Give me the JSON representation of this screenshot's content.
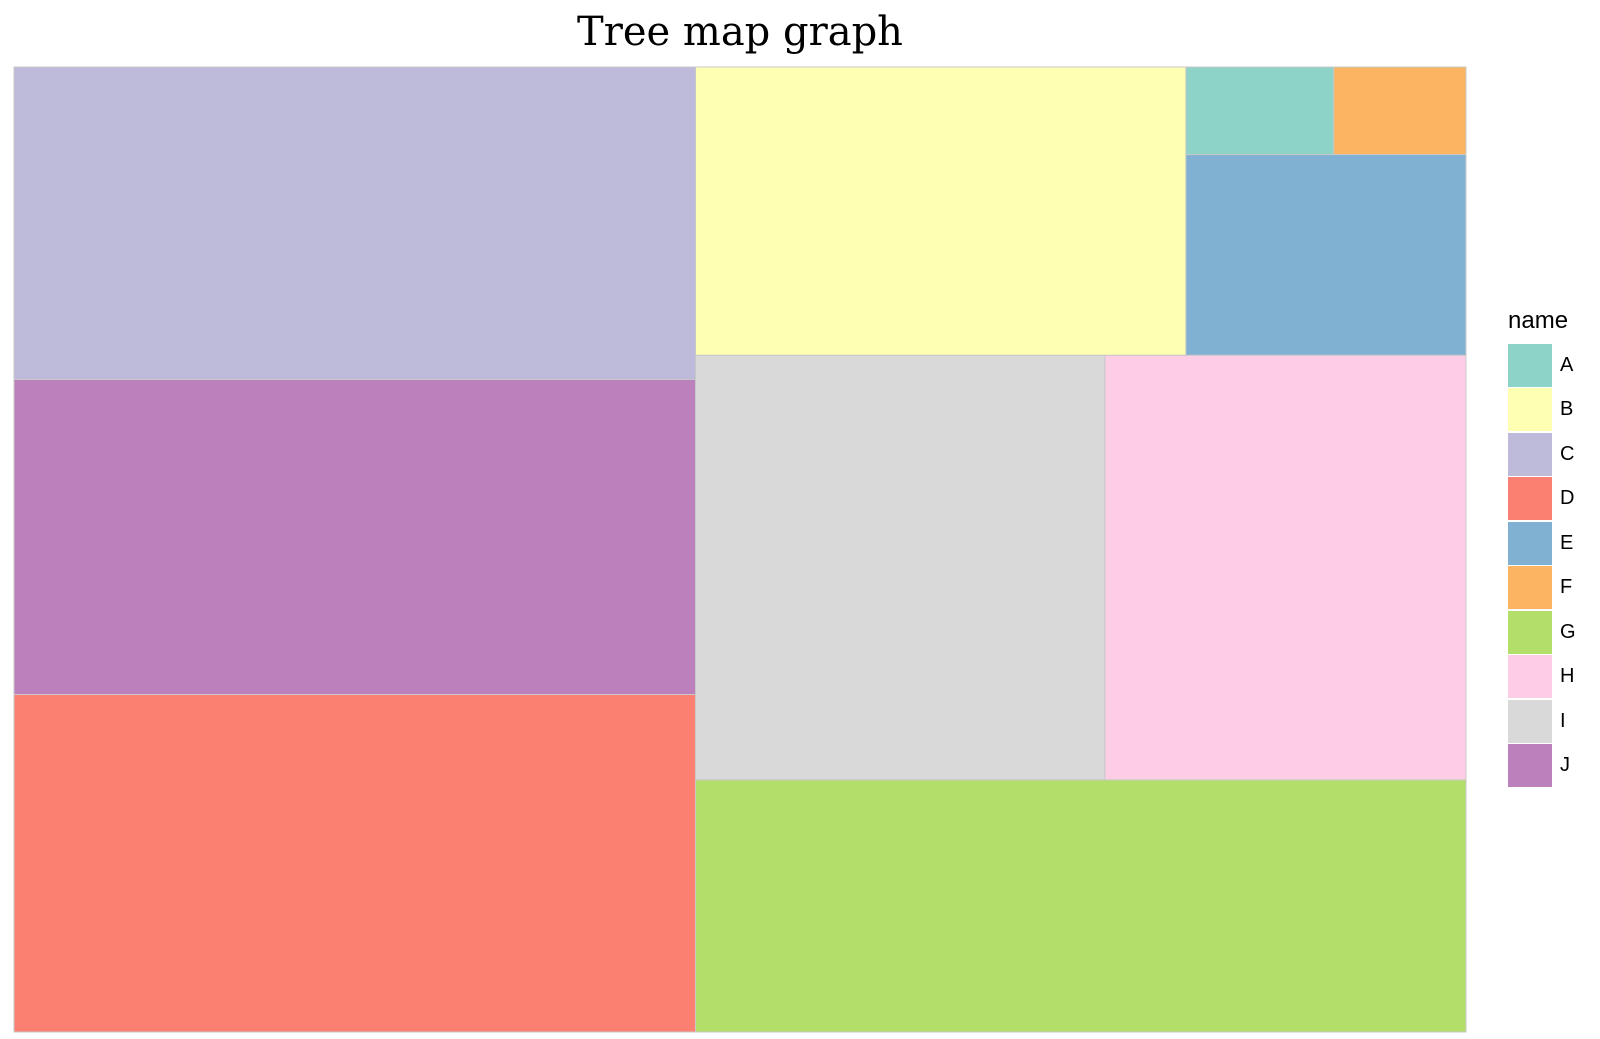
{
  "chart_data": {
    "type": "treemap",
    "title": "Tree map graph",
    "legend": {
      "title": "name",
      "position": "right"
    },
    "tiles": [
      {
        "name": "A",
        "value": 0.76,
        "color": "#8DD3C7"
      },
      {
        "name": "B",
        "value": 8.3,
        "color": "#FFFFB3"
      },
      {
        "name": "C",
        "value": 12.5,
        "color": "#BEBADA"
      },
      {
        "name": "D",
        "value": 13.5,
        "color": "#FB8072"
      },
      {
        "name": "E",
        "value": 3.3,
        "color": "#80B1D3"
      },
      {
        "name": "F",
        "value": 0.68,
        "color": "#FDB462"
      },
      {
        "name": "G",
        "value": 11.4,
        "color": "#B3DE69"
      },
      {
        "name": "H",
        "value": 9.0,
        "color": "#FCCDE5"
      },
      {
        "name": "I",
        "value": 10.2,
        "color": "#D9D9D9"
      },
      {
        "name": "J",
        "value": 12.6,
        "color": "#BC80BD"
      }
    ]
  }
}
